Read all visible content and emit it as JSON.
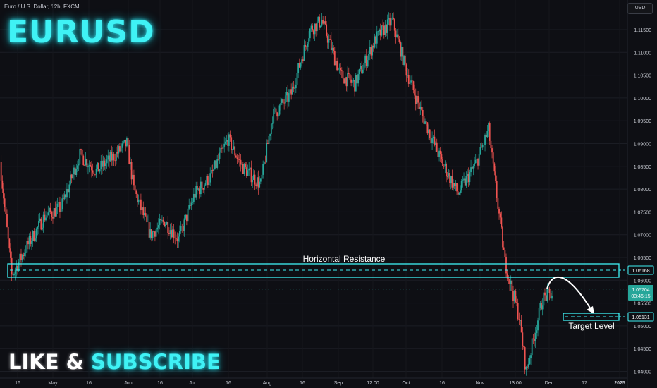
{
  "header": {
    "subtitle": "Euro / U.S. Dollar, 12h, FXCM",
    "symbol": "EURUSD",
    "currency_button": "USD"
  },
  "cta": {
    "part1": "LIKE & ",
    "part2": "SUBSCRIBE"
  },
  "colors": {
    "up": "#26a69a",
    "down": "#ef5350",
    "accent": "#3ff2f5",
    "background": "#0e0f14",
    "grid": "#1b1d24",
    "text": "#c9ccd4"
  },
  "annotations": {
    "resistance_label": "Horizontal Resistance",
    "resistance_price": "1.06168",
    "target_label": "Target Level",
    "target_price": "1.05131",
    "last_price": "1.05704",
    "countdown": "03:46:15"
  },
  "chart_data": {
    "type": "candlestick",
    "yticks": [
      "1.11500",
      "1.11000",
      "1.10500",
      "1.10000",
      "1.09500",
      "1.09000",
      "1.08500",
      "1.08000",
      "1.07500",
      "1.07000",
      "1.06500",
      "1.06000",
      "1.05500",
      "1.05000",
      "1.04500",
      "1.04000"
    ],
    "xticks": [
      "16",
      "May",
      "16",
      "Jun",
      "16",
      "Jul",
      "16",
      "Aug",
      "16",
      "Sep",
      "12:00",
      "Oct",
      "16",
      "Nov",
      "13:00",
      "Dec",
      "17",
      "2025"
    ],
    "ylim": [
      1.0385,
      1.1195
    ],
    "price_path": [
      [
        "Apr 11",
        1.086
      ],
      [
        "Apr 16",
        1.061
      ],
      [
        "Apr 22",
        1.067
      ],
      [
        "Apr 30",
        1.074
      ],
      [
        "May 7",
        1.076
      ],
      [
        "May 15",
        1.0875
      ],
      [
        "May 22",
        1.084
      ],
      [
        "May 29",
        1.087
      ],
      [
        "Jun 4",
        1.09
      ],
      [
        "Jun 7",
        1.08
      ],
      [
        "Jun 14",
        1.07
      ],
      [
        "Jun 20",
        1.073
      ],
      [
        "Jun 26",
        1.069
      ],
      [
        "Jul 3",
        1.079
      ],
      [
        "Jul 10",
        1.083
      ],
      [
        "Jul 17",
        1.091
      ],
      [
        "Jul 23",
        1.085
      ],
      [
        "Jul 31",
        1.081
      ],
      [
        "Aug 5",
        1.096
      ],
      [
        "Aug 13",
        1.101
      ],
      [
        "Aug 21",
        1.115
      ],
      [
        "Aug 26",
        1.117
      ],
      [
        "Sep 3",
        1.105
      ],
      [
        "Sep 9",
        1.103
      ],
      [
        "Sep 18",
        1.113
      ],
      [
        "Sep 25",
        1.117
      ],
      [
        "Oct 1",
        1.106
      ],
      [
        "Oct 8",
        1.096
      ],
      [
        "Oct 16",
        1.086
      ],
      [
        "Oct 23",
        1.079
      ],
      [
        "Oct 31",
        1.086
      ],
      [
        "Nov 5",
        1.093
      ],
      [
        "Nov 12",
        1.064
      ],
      [
        "Nov 18",
        1.052
      ],
      [
        "Nov 21",
        1.04
      ],
      [
        "Nov 28",
        1.056
      ],
      [
        "Dec 2",
        1.057
      ]
    ],
    "levels": [
      {
        "name": "Horizontal Resistance",
        "value": 1.06168
      },
      {
        "name": "Target Level",
        "value": 1.05131
      }
    ],
    "last_price": 1.05704
  }
}
